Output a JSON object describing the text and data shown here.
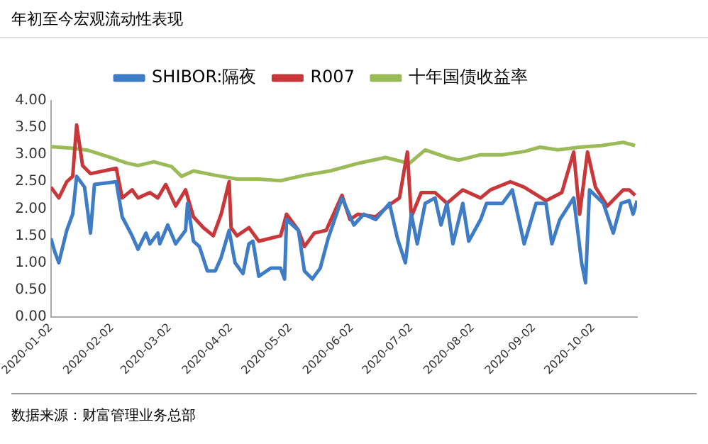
{
  "chart_data": {
    "type": "line",
    "title": "年初至今宏观流动性表现",
    "annotations": [
      "数据来源：财富管理业务总部"
    ],
    "xlim": [
      "2020-01-02",
      "2020-10-24"
    ],
    "xticks": [
      "2020-01-02",
      "2020-02-02",
      "2020-03-02",
      "2020-04-02",
      "2020-05-02",
      "2020-06-02",
      "2020-07-02",
      "2020-08-02",
      "2020-09-02",
      "2020-10-02"
    ],
    "ylim": [
      0,
      4
    ],
    "yticks": [
      {
        "value": 0,
        "label": "0.00"
      },
      {
        "value": 0.5,
        "label": "0.50"
      },
      {
        "value": 1,
        "label": "1.00"
      },
      {
        "value": 1.5,
        "label": "1.50"
      },
      {
        "value": 2,
        "label": "2.00"
      },
      {
        "value": 2.5,
        "label": "2.50"
      },
      {
        "value": 3,
        "label": "3.00"
      },
      {
        "value": 3.5,
        "label": "3.50"
      },
      {
        "value": 4,
        "label": "4.00"
      }
    ],
    "grid": false,
    "legend": "top",
    "marker": "none",
    "line_style": "solid",
    "series": [
      {
        "name": "SHIBOR:隔夜",
        "color": "#3f7cc6",
        "x": [
          "2020-01-02",
          "2020-01-04",
          "2020-01-06",
          "2020-01-10",
          "2020-01-13",
          "2020-01-15",
          "2020-01-19",
          "2020-01-22",
          "2020-01-24",
          "2020-02-04",
          "2020-02-07",
          "2020-02-12",
          "2020-02-15",
          "2020-02-19",
          "2020-02-21",
          "2020-02-25",
          "2020-02-26",
          "2020-03-01",
          "2020-03-05",
          "2020-03-10",
          "2020-03-11",
          "2020-03-14",
          "2020-03-17",
          "2020-03-21",
          "2020-03-25",
          "2020-03-28",
          "2020-04-01",
          "2020-04-04",
          "2020-04-08",
          "2020-04-11",
          "2020-04-13",
          "2020-04-16",
          "2020-04-22",
          "2020-04-27",
          "2020-04-29",
          "2020-04-30",
          "2020-05-06",
          "2020-05-09",
          "2020-05-13",
          "2020-05-17",
          "2020-05-21",
          "2020-05-28",
          "2020-06-03",
          "2020-06-08",
          "2020-06-14",
          "2020-06-21",
          "2020-06-25",
          "2020-06-29",
          "2020-07-02",
          "2020-07-05",
          "2020-07-09",
          "2020-07-14",
          "2020-07-17",
          "2020-07-20",
          "2020-07-23",
          "2020-07-28",
          "2020-07-31",
          "2020-08-06",
          "2020-08-09",
          "2020-08-17",
          "2020-08-22",
          "2020-08-28",
          "2020-09-03",
          "2020-09-08",
          "2020-09-11",
          "2020-09-15",
          "2020-09-22",
          "2020-09-26",
          "2020-09-28",
          "2020-09-30",
          "2020-10-07",
          "2020-10-12",
          "2020-10-16",
          "2020-10-20",
          "2020-10-22",
          "2020-10-24"
        ],
        "values": [
          1.45,
          1.2,
          1.0,
          1.6,
          1.9,
          2.6,
          2.4,
          1.55,
          2.45,
          2.5,
          1.85,
          1.5,
          1.25,
          1.55,
          1.35,
          1.55,
          1.35,
          1.7,
          1.35,
          1.6,
          2.1,
          1.4,
          1.3,
          0.85,
          0.85,
          1.1,
          1.6,
          1.0,
          0.8,
          1.35,
          1.4,
          0.75,
          0.9,
          0.9,
          0.7,
          1.8,
          1.6,
          0.85,
          0.7,
          0.9,
          1.45,
          2.2,
          1.7,
          1.9,
          1.8,
          2.1,
          1.45,
          1.0,
          1.9,
          1.35,
          2.1,
          2.2,
          1.7,
          2.1,
          1.35,
          2.1,
          1.4,
          1.8,
          2.1,
          2.1,
          2.35,
          1.35,
          2.1,
          2.1,
          1.35,
          1.8,
          2.2,
          1.0,
          0.63,
          2.35,
          2.1,
          1.55,
          2.1,
          2.15,
          1.9,
          2.15
        ]
      },
      {
        "name": "R007",
        "color": "#c8373a",
        "x": [
          "2020-01-02",
          "2020-01-06",
          "2020-01-10",
          "2020-01-13",
          "2020-01-15",
          "2020-01-18",
          "2020-01-22",
          "2020-02-04",
          "2020-02-07",
          "2020-02-12",
          "2020-02-15",
          "2020-02-21",
          "2020-02-25",
          "2020-02-29",
          "2020-03-05",
          "2020-03-10",
          "2020-03-14",
          "2020-03-19",
          "2020-03-24",
          "2020-03-28",
          "2020-04-01",
          "2020-04-02",
          "2020-04-05",
          "2020-04-11",
          "2020-04-16",
          "2020-04-27",
          "2020-04-30",
          "2020-05-06",
          "2020-05-09",
          "2020-05-14",
          "2020-05-20",
          "2020-05-28",
          "2020-06-01",
          "2020-06-05",
          "2020-06-14",
          "2020-06-22",
          "2020-06-26",
          "2020-06-30",
          "2020-07-02",
          "2020-07-07",
          "2020-07-14",
          "2020-07-20",
          "2020-07-28",
          "2020-08-06",
          "2020-08-11",
          "2020-08-21",
          "2020-08-28",
          "2020-09-08",
          "2020-09-16",
          "2020-09-22",
          "2020-09-25",
          "2020-09-29",
          "2020-10-03",
          "2020-10-09",
          "2020-10-17",
          "2020-10-20",
          "2020-10-23"
        ],
        "values": [
          2.4,
          2.2,
          2.5,
          2.6,
          3.55,
          2.8,
          2.65,
          2.75,
          2.2,
          2.35,
          2.2,
          2.3,
          2.2,
          2.45,
          2.05,
          2.35,
          1.85,
          1.65,
          1.5,
          1.9,
          2.5,
          1.65,
          1.5,
          1.65,
          1.4,
          1.5,
          1.9,
          1.6,
          1.3,
          1.55,
          1.6,
          2.25,
          1.8,
          1.9,
          1.85,
          2.1,
          2.2,
          3.05,
          1.85,
          2.3,
          2.3,
          2.1,
          2.35,
          2.2,
          2.35,
          2.5,
          2.4,
          2.15,
          2.3,
          3.05,
          1.9,
          3.05,
          2.4,
          2.05,
          2.35,
          2.35,
          2.25
        ]
      },
      {
        "name": "十年国债收益率",
        "color": "#9bbb59",
        "x": [
          "2020-01-02",
          "2020-01-13",
          "2020-01-21",
          "2020-02-01",
          "2020-02-09",
          "2020-02-15",
          "2020-02-23",
          "2020-03-03",
          "2020-03-08",
          "2020-03-14",
          "2020-03-25",
          "2020-04-05",
          "2020-04-16",
          "2020-04-27",
          "2020-05-09",
          "2020-05-22",
          "2020-06-05",
          "2020-06-19",
          "2020-07-01",
          "2020-07-09",
          "2020-07-20",
          "2020-07-26",
          "2020-08-06",
          "2020-08-17",
          "2020-08-28",
          "2020-09-05",
          "2020-09-14",
          "2020-09-25",
          "2020-10-06",
          "2020-10-17",
          "2020-10-23"
        ],
        "values": [
          3.15,
          3.12,
          3.08,
          2.95,
          2.85,
          2.8,
          2.87,
          2.78,
          2.6,
          2.7,
          2.62,
          2.55,
          2.55,
          2.52,
          2.62,
          2.7,
          2.84,
          2.95,
          2.84,
          3.09,
          2.95,
          2.9,
          3.0,
          3.0,
          3.06,
          3.14,
          3.09,
          3.14,
          3.17,
          3.23,
          3.17
        ]
      }
    ]
  }
}
